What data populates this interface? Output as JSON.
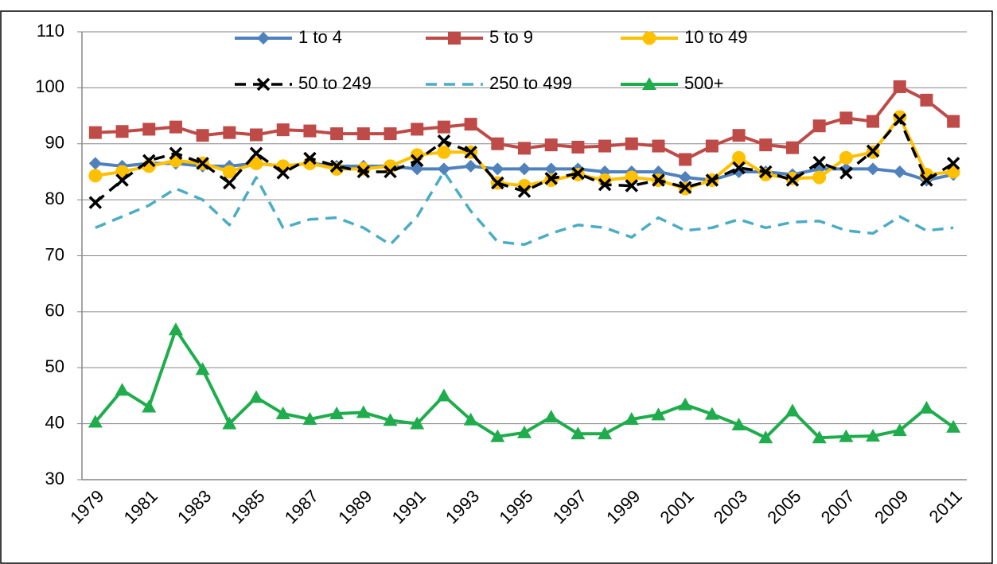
{
  "chart_data": {
    "type": "line",
    "categories": [
      "1979",
      null,
      "1981",
      null,
      "1983",
      null,
      "1985",
      null,
      "1987",
      null,
      "1989",
      null,
      "1991",
      null,
      "1993",
      null,
      "1995",
      null,
      "1997",
      null,
      "1999",
      null,
      "2001",
      null,
      "2003",
      null,
      "2005",
      null,
      "2007",
      null,
      "2009",
      null,
      "2011"
    ],
    "ylim": [
      30,
      110
    ],
    "yticks": [
      30,
      40,
      50,
      60,
      70,
      80,
      90,
      100,
      110
    ],
    "grid": true,
    "legend": "top",
    "series": [
      {
        "name": "1 to 4",
        "color": "#4f81bd",
        "marker": "diamond",
        "dash": false,
        "values": [
          86.5,
          86,
          86.5,
          86.5,
          86,
          86,
          86.5,
          86,
          86.5,
          86,
          86,
          86,
          85.5,
          85.5,
          86,
          85.5,
          85.5,
          85.5,
          85.5,
          85,
          85,
          85,
          84,
          83.5,
          85,
          85,
          84.5,
          85.5,
          85.5,
          85.5,
          85,
          83.5,
          84.5
        ]
      },
      {
        "name": "5 to 9",
        "color": "#be4b48",
        "marker": "square",
        "dash": false,
        "values": [
          92,
          92.2,
          92.6,
          93,
          91.5,
          92,
          91.6,
          92.5,
          92.3,
          91.8,
          91.8,
          91.8,
          92.6,
          93,
          93.5,
          90,
          89.2,
          89.8,
          89.4,
          89.6,
          90,
          89.6,
          87.2,
          89.6,
          91.5,
          89.8,
          89.3,
          93.2,
          94.6,
          94,
          100.2,
          97.8,
          94
        ]
      },
      {
        "name": "10 to 49",
        "color": "#ffc000",
        "marker": "circle",
        "dash": false,
        "values": [
          84.3,
          85,
          86,
          87,
          86.5,
          85,
          86.5,
          86,
          86.5,
          85.5,
          85.5,
          86,
          88,
          88.5,
          88.5,
          83,
          82.5,
          83.5,
          84.5,
          83.5,
          84,
          83.5,
          82,
          83.5,
          87.5,
          84.5,
          83.8,
          84,
          87.5,
          88.5,
          94.8,
          84.5,
          85
        ]
      },
      {
        "name": "50 to 249",
        "color": "#000000",
        "marker": "x",
        "dash": true,
        "values": [
          79.5,
          83.5,
          87,
          88.3,
          86.5,
          83,
          88.3,
          84.8,
          87.4,
          86,
          85,
          85,
          87,
          90.5,
          88.5,
          83,
          81.5,
          83.8,
          84.7,
          82.7,
          82.5,
          83.5,
          82.2,
          83.5,
          85.7,
          85,
          83.5,
          86.7,
          84.8,
          88.7,
          94.3,
          83.5,
          86.5
        ]
      },
      {
        "name": "250 to 499",
        "color": "#4bacc6",
        "marker": "none",
        "dash": true,
        "values": [
          75,
          77,
          79,
          82,
          80,
          75.5,
          84,
          75,
          76.5,
          76.8,
          75,
          72,
          77,
          85,
          78,
          72.5,
          72,
          74,
          75.5,
          75,
          73.3,
          76.8,
          74.5,
          75,
          76.5,
          75,
          76,
          76.2,
          74.5,
          74,
          77,
          74.5,
          75
        ]
      },
      {
        "name": "500+",
        "color": "#1fac4c",
        "marker": "triangle",
        "dash": false,
        "values": [
          40.3,
          46,
          43,
          56.8,
          49.7,
          40,
          44.7,
          41.8,
          40.8,
          41.8,
          42,
          40.6,
          40,
          45,
          40.7,
          37.7,
          38.4,
          41.2,
          38.2,
          38.2,
          40.8,
          41.6,
          43.4,
          41.7,
          39.8,
          37.5,
          42.3,
          37.5,
          37.7,
          37.8,
          38.8,
          42.8,
          39.4
        ]
      }
    ]
  }
}
